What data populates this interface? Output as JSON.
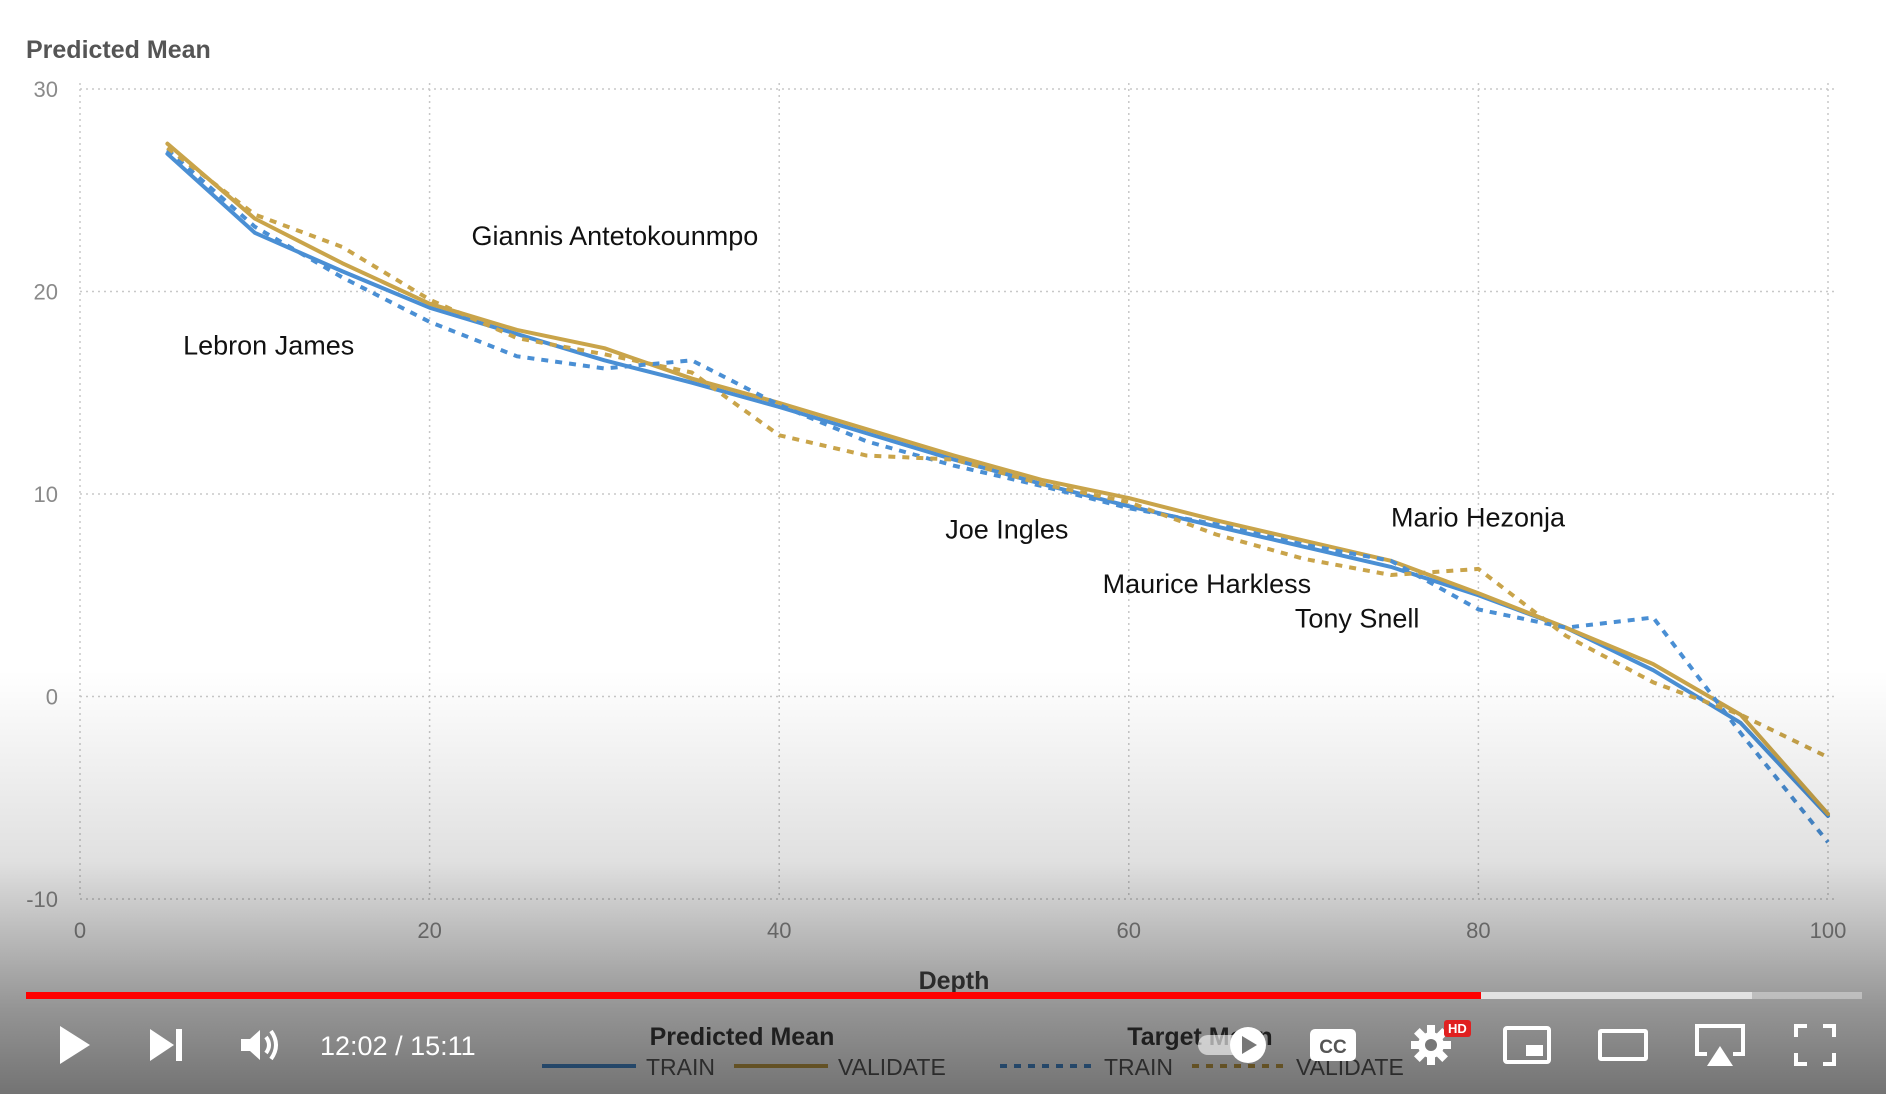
{
  "chart_data": {
    "type": "line",
    "ylabel": "Predicted Mean",
    "xlabel": "Depth",
    "xlim": [
      0,
      100
    ],
    "ylim": [
      -10,
      30
    ],
    "x_ticks": [
      0,
      20,
      40,
      60,
      80,
      100
    ],
    "y_ticks": [
      -10,
      0,
      10,
      20,
      30
    ],
    "grid": true,
    "legend_position": "bottom",
    "legend_groups": [
      {
        "title": "Predicted Mean",
        "entries": [
          "TRAIN",
          "VALIDATE"
        ]
      },
      {
        "title": "Target Mean",
        "entries": [
          "TRAIN",
          "VALIDATE"
        ]
      }
    ],
    "x": [
      5,
      10,
      15,
      20,
      25,
      30,
      35,
      40,
      45,
      50,
      55,
      60,
      65,
      70,
      75,
      80,
      85,
      90,
      95,
      100
    ],
    "series": [
      {
        "group": "Predicted Mean",
        "name": "TRAIN",
        "color": "#4a8fd4",
        "style": "solid",
        "values": [
          26.8,
          22.9,
          21.0,
          19.2,
          17.9,
          16.6,
          15.5,
          14.3,
          13.0,
          11.7,
          10.5,
          9.4,
          8.4,
          7.4,
          6.4,
          5.0,
          3.4,
          1.3,
          -1.3,
          -5.9
        ]
      },
      {
        "group": "Predicted Mean",
        "name": "VALIDATE",
        "color": "#c9a44a",
        "style": "solid",
        "values": [
          27.3,
          23.6,
          21.4,
          19.4,
          18.1,
          17.2,
          15.7,
          14.5,
          13.2,
          11.9,
          10.7,
          9.8,
          8.7,
          7.7,
          6.7,
          5.1,
          3.4,
          1.6,
          -0.9,
          -5.8
        ]
      },
      {
        "group": "Target Mean",
        "name": "TRAIN",
        "color": "#4a8fd4",
        "style": "dashed",
        "values": [
          27.0,
          23.2,
          20.7,
          18.5,
          16.8,
          16.2,
          16.6,
          14.4,
          12.6,
          11.4,
          10.4,
          9.3,
          8.5,
          7.5,
          6.7,
          4.3,
          3.4,
          3.9,
          -1.8,
          -7.2
        ]
      },
      {
        "group": "Target Mean",
        "name": "VALIDATE",
        "color": "#c9a44a",
        "style": "dashed",
        "values": [
          27.1,
          23.8,
          22.2,
          19.6,
          17.7,
          16.9,
          16.0,
          12.9,
          11.9,
          11.7,
          10.5,
          9.6,
          8.0,
          6.8,
          6.0,
          6.3,
          3.0,
          0.7,
          -0.9,
          -3.0
        ]
      }
    ],
    "annotations": [
      {
        "text": "Lebron James",
        "x": 5.9,
        "y": 16.9
      },
      {
        "text": "Giannis Antetokounmpo",
        "x": 22.4,
        "y": 22.3
      },
      {
        "text": "Joe Ingles",
        "x": 49.5,
        "y": 7.8
      },
      {
        "text": "Maurice Harkless",
        "x": 58.5,
        "y": 5.1
      },
      {
        "text": "Tony Snell",
        "x": 69.5,
        "y": 3.4
      },
      {
        "text": "Mario Hezonja",
        "x": 75.0,
        "y": 8.4
      }
    ]
  },
  "player": {
    "time_display": "12:02 / 15:11",
    "current_seconds": 722,
    "duration_seconds": 911,
    "buffered_fraction": 0.94,
    "hd_badge": "HD",
    "icons": [
      "play-icon",
      "next-icon",
      "volume-icon",
      "autoplay-toggle-icon",
      "captions-icon",
      "settings-icon",
      "miniplayer-icon",
      "theater-mode-icon",
      "airplay-icon",
      "fullscreen-icon"
    ]
  }
}
